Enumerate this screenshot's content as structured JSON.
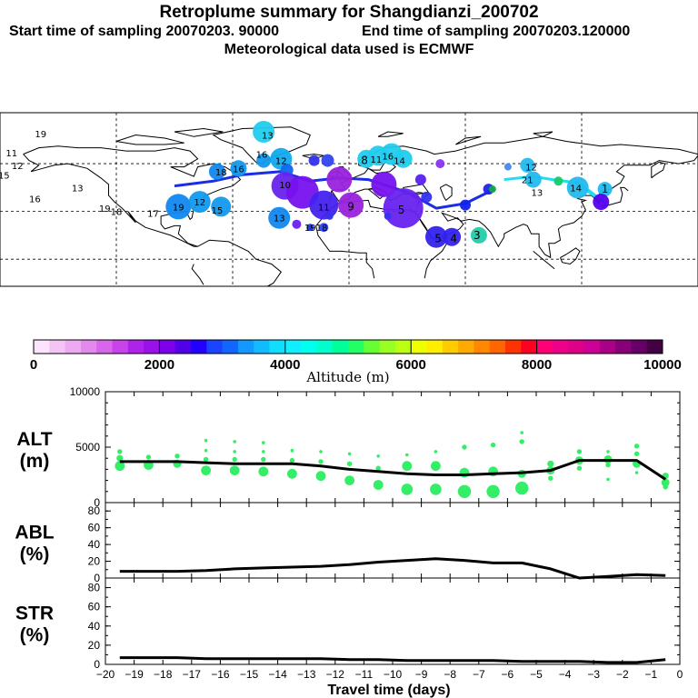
{
  "header": {
    "title": "Retroplume summary for Shangdianzi_200702",
    "start_label": "Start time of sampling 20070203. 90000",
    "end_label": "End time of sampling 20070203.120000",
    "met_label": "Meteorological data used is ECMWF"
  },
  "colors": {
    "line": "#000000",
    "alt_dots": "#33ee66",
    "track_blue": "#1a2ee6",
    "track_cyan": "#22ddee"
  },
  "map": {
    "plume_labels": [
      {
        "text": "19",
        "color": "#11cc66",
        "lon": -159,
        "lat": 79
      },
      {
        "text": "11",
        "color": "#11cc66",
        "lon": -174,
        "lat": 67
      },
      {
        "text": "12",
        "color": "#11cc66",
        "lon": -171,
        "lat": 59
      },
      {
        "text": "15",
        "color": "#11cc66",
        "lon": -178,
        "lat": 53
      },
      {
        "text": "13",
        "color": "#11cc66",
        "lon": -140,
        "lat": 45
      },
      {
        "text": "16",
        "color": "#11cc66",
        "lon": -162,
        "lat": 38
      },
      {
        "text": "19",
        "color": "#11cc66",
        "lon": -126,
        "lat": 32
      },
      {
        "text": "18",
        "color": "#11cc66",
        "lon": -120,
        "lat": 30
      },
      {
        "text": "17",
        "color": "#11cc66",
        "lon": -101,
        "lat": 29
      },
      {
        "text": "19",
        "color": "#1188ee",
        "lon": -88,
        "lat": 33
      },
      {
        "text": "12",
        "color": "#1188ee",
        "lon": -77,
        "lat": 36
      },
      {
        "text": "15",
        "color": "#1188ee",
        "lon": -68,
        "lat": 31
      },
      {
        "text": "18",
        "color": "#1188ee",
        "lon": -66,
        "lat": 55
      },
      {
        "text": "16",
        "color": "#1188ee",
        "lon": -57,
        "lat": 57
      },
      {
        "text": "13",
        "color": "#22ccee",
        "lon": -42,
        "lat": 78
      },
      {
        "text": "16",
        "color": "#11aaee",
        "lon": -45,
        "lat": 66
      },
      {
        "text": "12",
        "color": "#11aaee",
        "lon": -35,
        "lat": 62
      },
      {
        "text": "13",
        "color": "#1188ee",
        "lon": -36,
        "lat": 26
      },
      {
        "text": "10",
        "color": "#6622ee",
        "lon": -33,
        "lat": 47
      },
      {
        "text": "11",
        "color": "#4422ee",
        "lon": -13,
        "lat": 33
      },
      {
        "text": "9",
        "color": "#9922dd",
        "lon": 1,
        "lat": 33
      },
      {
        "text": "19",
        "color": "#4444ee",
        "lon": -20,
        "lat": 20
      },
      {
        "text": "18",
        "color": "#4444ee",
        "lon": -14,
        "lat": 20
      },
      {
        "text": "8",
        "color": "#22ccee",
        "lon": 8,
        "lat": 62
      },
      {
        "text": "11",
        "color": "#22ccee",
        "lon": 14,
        "lat": 63
      },
      {
        "text": "16",
        "color": "#22ccee",
        "lon": 20,
        "lat": 65
      },
      {
        "text": "14",
        "color": "#22ccee",
        "lon": 26,
        "lat": 62
      },
      {
        "text": "5",
        "color": "#6622ee",
        "lon": 27,
        "lat": 31
      },
      {
        "text": "5",
        "color": "#3322ee",
        "lon": 46,
        "lat": 13
      },
      {
        "text": "4",
        "color": "#3322ee",
        "lon": 54,
        "lat": 13
      },
      {
        "text": "3",
        "color": "#22ccaa",
        "lon": 66,
        "lat": 15
      },
      {
        "text": "12",
        "color": "#22bbee",
        "lon": 94,
        "lat": 58
      },
      {
        "text": "21",
        "color": "#22bbee",
        "lon": 92,
        "lat": 50
      },
      {
        "text": "13",
        "color": "#22bbee",
        "lon": 97,
        "lat": 42
      },
      {
        "text": "14",
        "color": "#22bbee",
        "lon": 117,
        "lat": 45
      },
      {
        "text": "1",
        "color": "#22bbee",
        "lon": 132,
        "lat": 44
      }
    ]
  },
  "colorbar": {
    "tick_labels": [
      "0",
      "2000",
      "4000",
      "6000",
      "8000",
      "10000"
    ],
    "title": "Altitude (m)",
    "colors": [
      "#fce4fc",
      "#f4c4f4",
      "#eeaaf0",
      "#e388ec",
      "#d866ea",
      "#c844ea",
      "#b022ea",
      "#9a11ea",
      "#7e00ea",
      "#5200ea",
      "#2200ff",
      "#1a44ff",
      "#1166ff",
      "#1199ff",
      "#11bbff",
      "#11ddff",
      "#11eeff",
      "#00ffee",
      "#00ffcc",
      "#00ff99",
      "#22ff66",
      "#66ff33",
      "#99ff22",
      "#bbff11",
      "#eeff00",
      "#ffee00",
      "#ffcc00",
      "#ffaa00",
      "#ff8800",
      "#ff6600",
      "#ff3300",
      "#ff0022",
      "#ff0077",
      "#ee0088",
      "#dd0088",
      "#cc0099",
      "#aa0088",
      "#880077",
      "#660066",
      "#440044"
    ]
  },
  "chart_data": [
    {
      "type": "line",
      "name": "ALT",
      "ylabel_1": "ALT",
      "ylabel_2": "(m)",
      "ylim": [
        0,
        10000
      ],
      "yticks": [
        "0",
        "5000",
        "10000"
      ],
      "x": [
        -19.5,
        -18.5,
        -17.5,
        -16.5,
        -15.5,
        -14.5,
        -13.5,
        -12.5,
        -11.5,
        -10.5,
        -9.5,
        -8.5,
        -7.5,
        -6.5,
        -5.5,
        -4.5,
        -3.5,
        -2.5,
        -1.5,
        -0.5
      ],
      "values": [
        3700,
        3700,
        3700,
        3600,
        3500,
        3500,
        3500,
        3300,
        3000,
        2800,
        2600,
        2500,
        2500,
        2600,
        2700,
        2900,
        3800,
        3800,
        3800,
        2100
      ],
      "scatter_points": [
        [
          -19.5,
          3300,
          6
        ],
        [
          -19.5,
          4000,
          4
        ],
        [
          -19.5,
          4600,
          3
        ],
        [
          -18.5,
          3400,
          6
        ],
        [
          -18.5,
          4100,
          3
        ],
        [
          -17.5,
          3500,
          5
        ],
        [
          -17.5,
          4200,
          3
        ],
        [
          -16.5,
          2900,
          6
        ],
        [
          -16.5,
          3900,
          3
        ],
        [
          -16.5,
          4700,
          2
        ],
        [
          -16.5,
          5600,
          2
        ],
        [
          -15.5,
          2900,
          6
        ],
        [
          -15.5,
          3900,
          3
        ],
        [
          -15.5,
          4600,
          2
        ],
        [
          -15.5,
          5500,
          2
        ],
        [
          -14.5,
          2800,
          6
        ],
        [
          -14.5,
          3900,
          3
        ],
        [
          -14.5,
          4600,
          2
        ],
        [
          -14.5,
          5400,
          2
        ],
        [
          -13.5,
          2600,
          6
        ],
        [
          -13.5,
          3800,
          3
        ],
        [
          -13.5,
          4700,
          2
        ],
        [
          -12.5,
          2400,
          6
        ],
        [
          -12.5,
          3700,
          3
        ],
        [
          -12.5,
          4600,
          2
        ],
        [
          -11.5,
          2000,
          6
        ],
        [
          -11.5,
          3500,
          3
        ],
        [
          -11.5,
          4400,
          2
        ],
        [
          -10.5,
          1600,
          6
        ],
        [
          -10.5,
          3100,
          3
        ],
        [
          -10.5,
          4200,
          2
        ],
        [
          -9.5,
          1200,
          7
        ],
        [
          -9.5,
          3300,
          6
        ],
        [
          -9.5,
          4300,
          2
        ],
        [
          -8.5,
          1200,
          7
        ],
        [
          -8.5,
          3300,
          6
        ],
        [
          -8.5,
          4600,
          2
        ],
        [
          -7.5,
          1000,
          8
        ],
        [
          -7.5,
          2700,
          6
        ],
        [
          -7.5,
          5000,
          3
        ],
        [
          -6.5,
          1000,
          8
        ],
        [
          -6.5,
          2800,
          6
        ],
        [
          -6.5,
          5200,
          3
        ],
        [
          -5.5,
          1300,
          8
        ],
        [
          -5.5,
          2600,
          5
        ],
        [
          -5.5,
          5500,
          3
        ],
        [
          -5.5,
          6300,
          2
        ],
        [
          -4.5,
          2900,
          5
        ],
        [
          -4.5,
          3500,
          4
        ],
        [
          -4.5,
          2200,
          3
        ],
        [
          -3.5,
          3800,
          5
        ],
        [
          -3.5,
          3100,
          3
        ],
        [
          -3.5,
          4600,
          3
        ],
        [
          -2.5,
          3900,
          5
        ],
        [
          -2.5,
          3400,
          3
        ],
        [
          -2.5,
          2100,
          2
        ],
        [
          -2.5,
          4600,
          2
        ],
        [
          -1.5,
          3500,
          5
        ],
        [
          -1.5,
          4400,
          3
        ],
        [
          -1.5,
          5100,
          3
        ],
        [
          -1.5,
          2700,
          2
        ],
        [
          -0.5,
          1800,
          5
        ],
        [
          -0.5,
          2400,
          4
        ],
        [
          -0.5,
          1400,
          3
        ]
      ]
    },
    {
      "type": "line",
      "name": "ABL",
      "ylabel_1": "ABL",
      "ylabel_2": "(%)",
      "ylim": [
        0,
        90
      ],
      "yticks": [
        "0",
        "20",
        "40",
        "60",
        "80"
      ],
      "x": [
        -19.5,
        -18.5,
        -17.5,
        -16.5,
        -15.5,
        -14.5,
        -13.5,
        -12.5,
        -11.5,
        -10.5,
        -9.5,
        -8.5,
        -7.5,
        -6.5,
        -5.5,
        -4.5,
        -3.5,
        -2.5,
        -1.5,
        -0.5
      ],
      "values": [
        8,
        8,
        8,
        9,
        11,
        12,
        13,
        14,
        16,
        19,
        21,
        23,
        21,
        18,
        18,
        11,
        0,
        2,
        4,
        3
      ]
    },
    {
      "type": "line",
      "name": "STR",
      "ylabel_1": "STR",
      "ylabel_2": "(%)",
      "ylim": [
        0,
        90
      ],
      "yticks": [
        "0",
        "20",
        "40",
        "60",
        "80"
      ],
      "xlabel": "Travel time (days)",
      "xticks": [
        "−20",
        "−19",
        "−18",
        "−17",
        "−16",
        "−15",
        "−14",
        "−13",
        "−12",
        "−11",
        "−10",
        "−9",
        "−8",
        "−7",
        "−6",
        "−5",
        "−4",
        "−3",
        "−2",
        "−1",
        "0"
      ],
      "x": [
        -19.5,
        -18.5,
        -17.5,
        -16.5,
        -15.5,
        -14.5,
        -13.5,
        -12.5,
        -11.5,
        -10.5,
        -9.5,
        -8.5,
        -7.5,
        -6.5,
        -5.5,
        -4.5,
        -3.5,
        -2.5,
        -1.5,
        -0.5
      ],
      "values": [
        7,
        7,
        7,
        6,
        6,
        6,
        6,
        6,
        5,
        5,
        4,
        4,
        4,
        4,
        3,
        3,
        3,
        2,
        2,
        5
      ]
    }
  ]
}
